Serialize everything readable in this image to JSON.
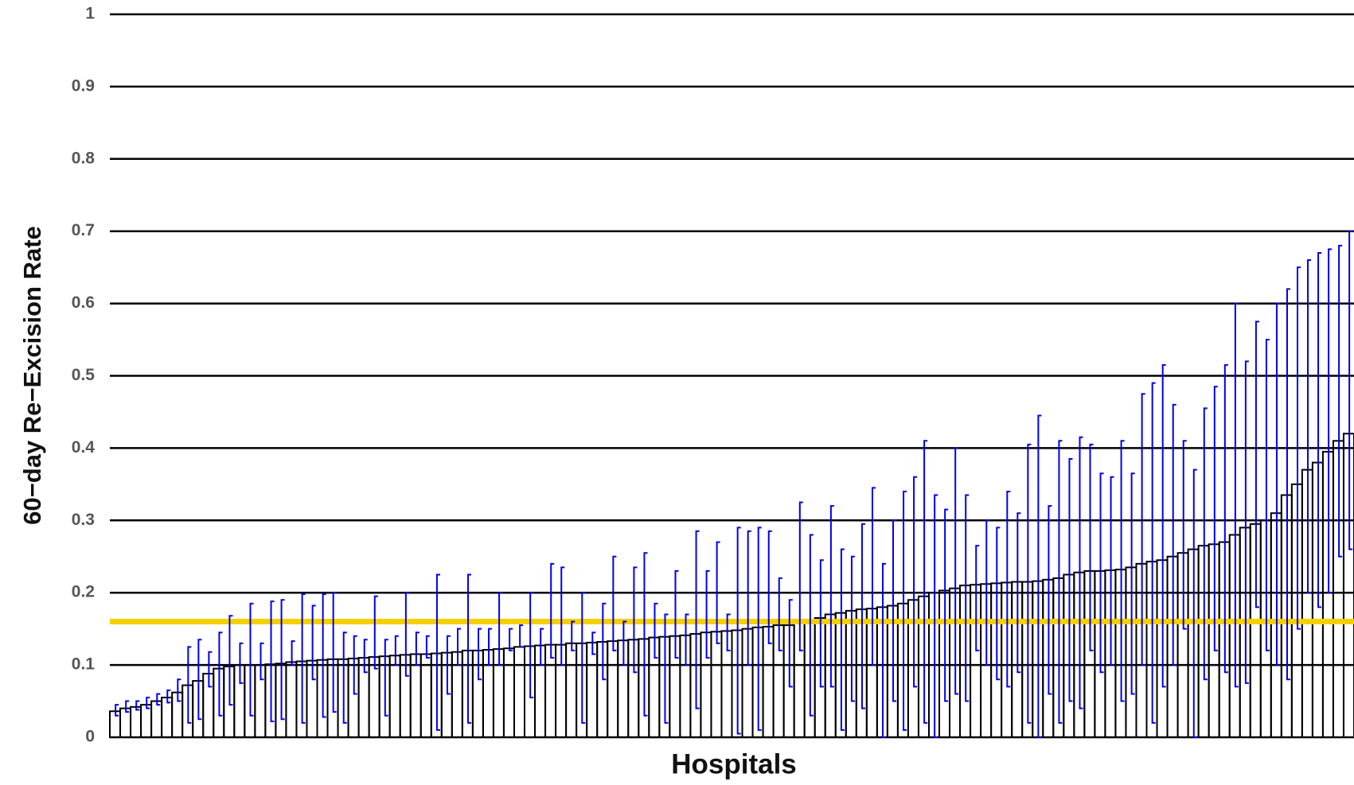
{
  "chart_data": {
    "type": "bar",
    "ylabel": "60−day Re−Excision Rate",
    "xlabel": "Hospitals",
    "color": "#000000",
    "ci_color": "#0000ee",
    "reference_line": {
      "value": 0.16,
      "color": "#f5d000"
    },
    "ylim": [
      0,
      1
    ],
    "yticks": [
      0,
      0.1,
      0.2,
      0.3,
      0.4,
      0.5,
      0.6,
      0.7,
      0.8,
      0.9,
      1
    ],
    "grid": true,
    "values": [
      0.036,
      0.04,
      0.042,
      0.045,
      0.05,
      0.055,
      0.062,
      0.072,
      0.078,
      0.088,
      0.095,
      0.098,
      0.1,
      0.1,
      0.1,
      0.101,
      0.102,
      0.104,
      0.105,
      0.106,
      0.107,
      0.108,
      0.108,
      0.109,
      0.11,
      0.111,
      0.112,
      0.113,
      0.114,
      0.115,
      0.115,
      0.116,
      0.117,
      0.118,
      0.12,
      0.12,
      0.121,
      0.122,
      0.123,
      0.125,
      0.126,
      0.127,
      0.128,
      0.128,
      0.13,
      0.13,
      0.131,
      0.132,
      0.133,
      0.134,
      0.135,
      0.136,
      0.138,
      0.139,
      0.14,
      0.141,
      0.143,
      0.145,
      0.146,
      0.147,
      0.148,
      0.15,
      0.152,
      0.153,
      0.155,
      0.155,
      0.158,
      0.16,
      0.165,
      0.17,
      0.172,
      0.175,
      0.177,
      0.178,
      0.18,
      0.182,
      0.185,
      0.19,
      0.195,
      0.2,
      0.203,
      0.206,
      0.21,
      0.211,
      0.212,
      0.213,
      0.214,
      0.215,
      0.215,
      0.216,
      0.218,
      0.22,
      0.225,
      0.228,
      0.23,
      0.23,
      0.231,
      0.232,
      0.235,
      0.24,
      0.243,
      0.245,
      0.25,
      0.255,
      0.26,
      0.265,
      0.267,
      0.27,
      0.28,
      0.29,
      0.295,
      0.3,
      0.31,
      0.335,
      0.35,
      0.37,
      0.38,
      0.395,
      0.41,
      0.42
    ],
    "ci_low": [
      0.03,
      0.035,
      0.038,
      0.04,
      0.045,
      0.048,
      0.05,
      0.02,
      0.025,
      0.07,
      0.03,
      0.045,
      0.075,
      0.03,
      0.08,
      0.022,
      0.025,
      0.1,
      0.02,
      0.08,
      0.028,
      0.035,
      0.02,
      0.06,
      0.09,
      0.095,
      0.03,
      0.1,
      0.085,
      0.1,
      0.11,
      0.01,
      0.06,
      0.1,
      0.02,
      0.08,
      0.1,
      0.1,
      0.12,
      0.125,
      0.055,
      0.1,
      0.11,
      0.1,
      0.12,
      0.02,
      0.115,
      0.08,
      0.12,
      0.1,
      0.09,
      0.03,
      0.11,
      0.02,
      0.11,
      0.1,
      0.04,
      0.11,
      0.13,
      0.12,
      0.005,
      0.1,
      0.01,
      0.13,
      0.12,
      0.07,
      0.12,
      0.03,
      0.07,
      0.07,
      0.01,
      0.05,
      0.04,
      0.1,
      0.0,
      0.05,
      0.01,
      0.07,
      0.02,
      0.0,
      0.05,
      0.06,
      0.05,
      0.12,
      0.1,
      0.08,
      0.07,
      0.09,
      0.02,
      0.0,
      0.06,
      0.02,
      0.05,
      0.04,
      0.12,
      0.09,
      0.1,
      0.05,
      0.06,
      0.1,
      0.02,
      0.07,
      0.1,
      0.15,
      0.0,
      0.08,
      0.12,
      0.09,
      0.07,
      0.075,
      0.18,
      0.12,
      0.1,
      0.08,
      0.15,
      0.2,
      0.18,
      0.2,
      0.25,
      0.26
    ],
    "ci_high": [
      0.045,
      0.05,
      0.05,
      0.055,
      0.06,
      0.065,
      0.08,
      0.125,
      0.135,
      0.118,
      0.145,
      0.168,
      0.13,
      0.185,
      0.13,
      0.188,
      0.19,
      0.133,
      0.198,
      0.182,
      0.198,
      0.2,
      0.145,
      0.14,
      0.135,
      0.195,
      0.135,
      0.14,
      0.2,
      0.145,
      0.14,
      0.225,
      0.14,
      0.15,
      0.225,
      0.15,
      0.15,
      0.2,
      0.15,
      0.155,
      0.2,
      0.15,
      0.24,
      0.235,
      0.16,
      0.2,
      0.145,
      0.185,
      0.25,
      0.16,
      0.235,
      0.255,
      0.185,
      0.17,
      0.23,
      0.17,
      0.285,
      0.23,
      0.27,
      0.17,
      0.29,
      0.285,
      0.29,
      0.285,
      0.22,
      0.19,
      0.325,
      0.28,
      0.245,
      0.32,
      0.26,
      0.25,
      0.295,
      0.345,
      0.24,
      0.3,
      0.34,
      0.36,
      0.41,
      0.335,
      0.315,
      0.4,
      0.335,
      0.265,
      0.3,
      0.29,
      0.34,
      0.31,
      0.405,
      0.445,
      0.32,
      0.41,
      0.385,
      0.415,
      0.405,
      0.365,
      0.36,
      0.41,
      0.365,
      0.475,
      0.49,
      0.515,
      0.46,
      0.41,
      0.37,
      0.455,
      0.485,
      0.515,
      0.6,
      0.52,
      0.575,
      0.55,
      0.6,
      0.62,
      0.65,
      0.66,
      0.67,
      0.675,
      0.68,
      0.7
    ]
  }
}
